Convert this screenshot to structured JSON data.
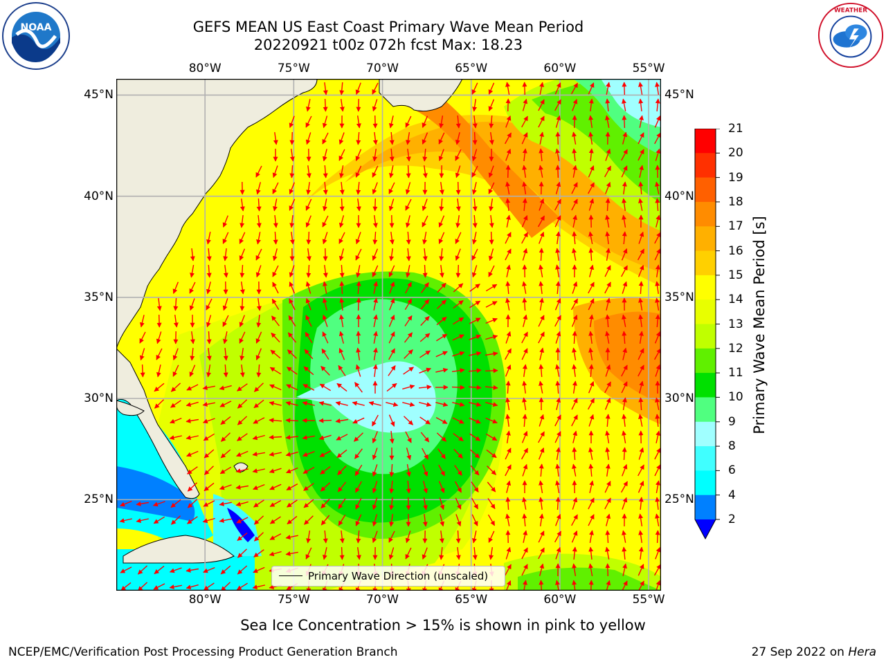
{
  "header": {
    "title_line1": "GEFS MEAN US East Coast Primary Wave Mean Period",
    "title_line2": "20220921 t00z 072h fcst   Max: 18.23"
  },
  "map": {
    "projection": "lat-lon",
    "extent": {
      "lon_min": -85,
      "lon_max": -54.3,
      "lat_min": 20.5,
      "lat_max": 45.8
    },
    "lon_ticks": [
      "80°W",
      "75°W",
      "70°W",
      "65°W",
      "60°W",
      "55°W"
    ],
    "lat_ticks": [
      "45°N",
      "40°N",
      "35°N",
      "30°N",
      "25°N"
    ],
    "land_color": "#efedde",
    "gridlines": true,
    "vector_color": "#ff0000",
    "max_value": 18.23
  },
  "legend": {
    "label": "Primary Wave Direction (unscaled)"
  },
  "colorbar": {
    "label": "Primary Wave Mean Period [s]",
    "ticks": [
      "21",
      "20",
      "19",
      "18",
      "17",
      "16",
      "15",
      "14",
      "13",
      "12",
      "11",
      "10",
      "9",
      "8",
      "6",
      "4",
      "2"
    ],
    "colors": [
      "#0000ff",
      "#0080ff",
      "#00ffff",
      "#40ffff",
      "#a0ffff",
      "#50ff80",
      "#00e000",
      "#60f000",
      "#c0ff00",
      "#e8ff00",
      "#ffff00",
      "#ffd000",
      "#ffb000",
      "#ff8c00",
      "#ff6000",
      "#ff3000",
      "#ff0000"
    ],
    "extend": "min"
  },
  "chart_data": {
    "type": "heatmap",
    "title": "GEFS MEAN US East Coast Primary Wave Mean Period",
    "subtitle": "20220921 t00z 072h fcst   Max: 18.23",
    "levels": [
      2,
      4,
      6,
      8,
      9,
      10,
      11,
      12,
      13,
      14,
      15,
      16,
      17,
      18,
      19,
      20,
      21
    ],
    "x_ticks": [
      "80°W",
      "75°W",
      "70°W",
      "65°W",
      "60°W",
      "55°W"
    ],
    "y_ticks": [
      "45°N",
      "40°N",
      "35°N",
      "30°N",
      "25°N"
    ],
    "max": 18.23
  },
  "note": "Sea Ice Concentration > 15% is shown in pink to yellow",
  "footer": {
    "left": "NCEP/EMC/Verification Post Processing Product Generation Branch",
    "right_prefix": "27 Sep 2022 on ",
    "right_host": "Hera"
  },
  "logos": {
    "left": "NOAA",
    "right": "NATIONAL WEATHER SERVICE"
  }
}
